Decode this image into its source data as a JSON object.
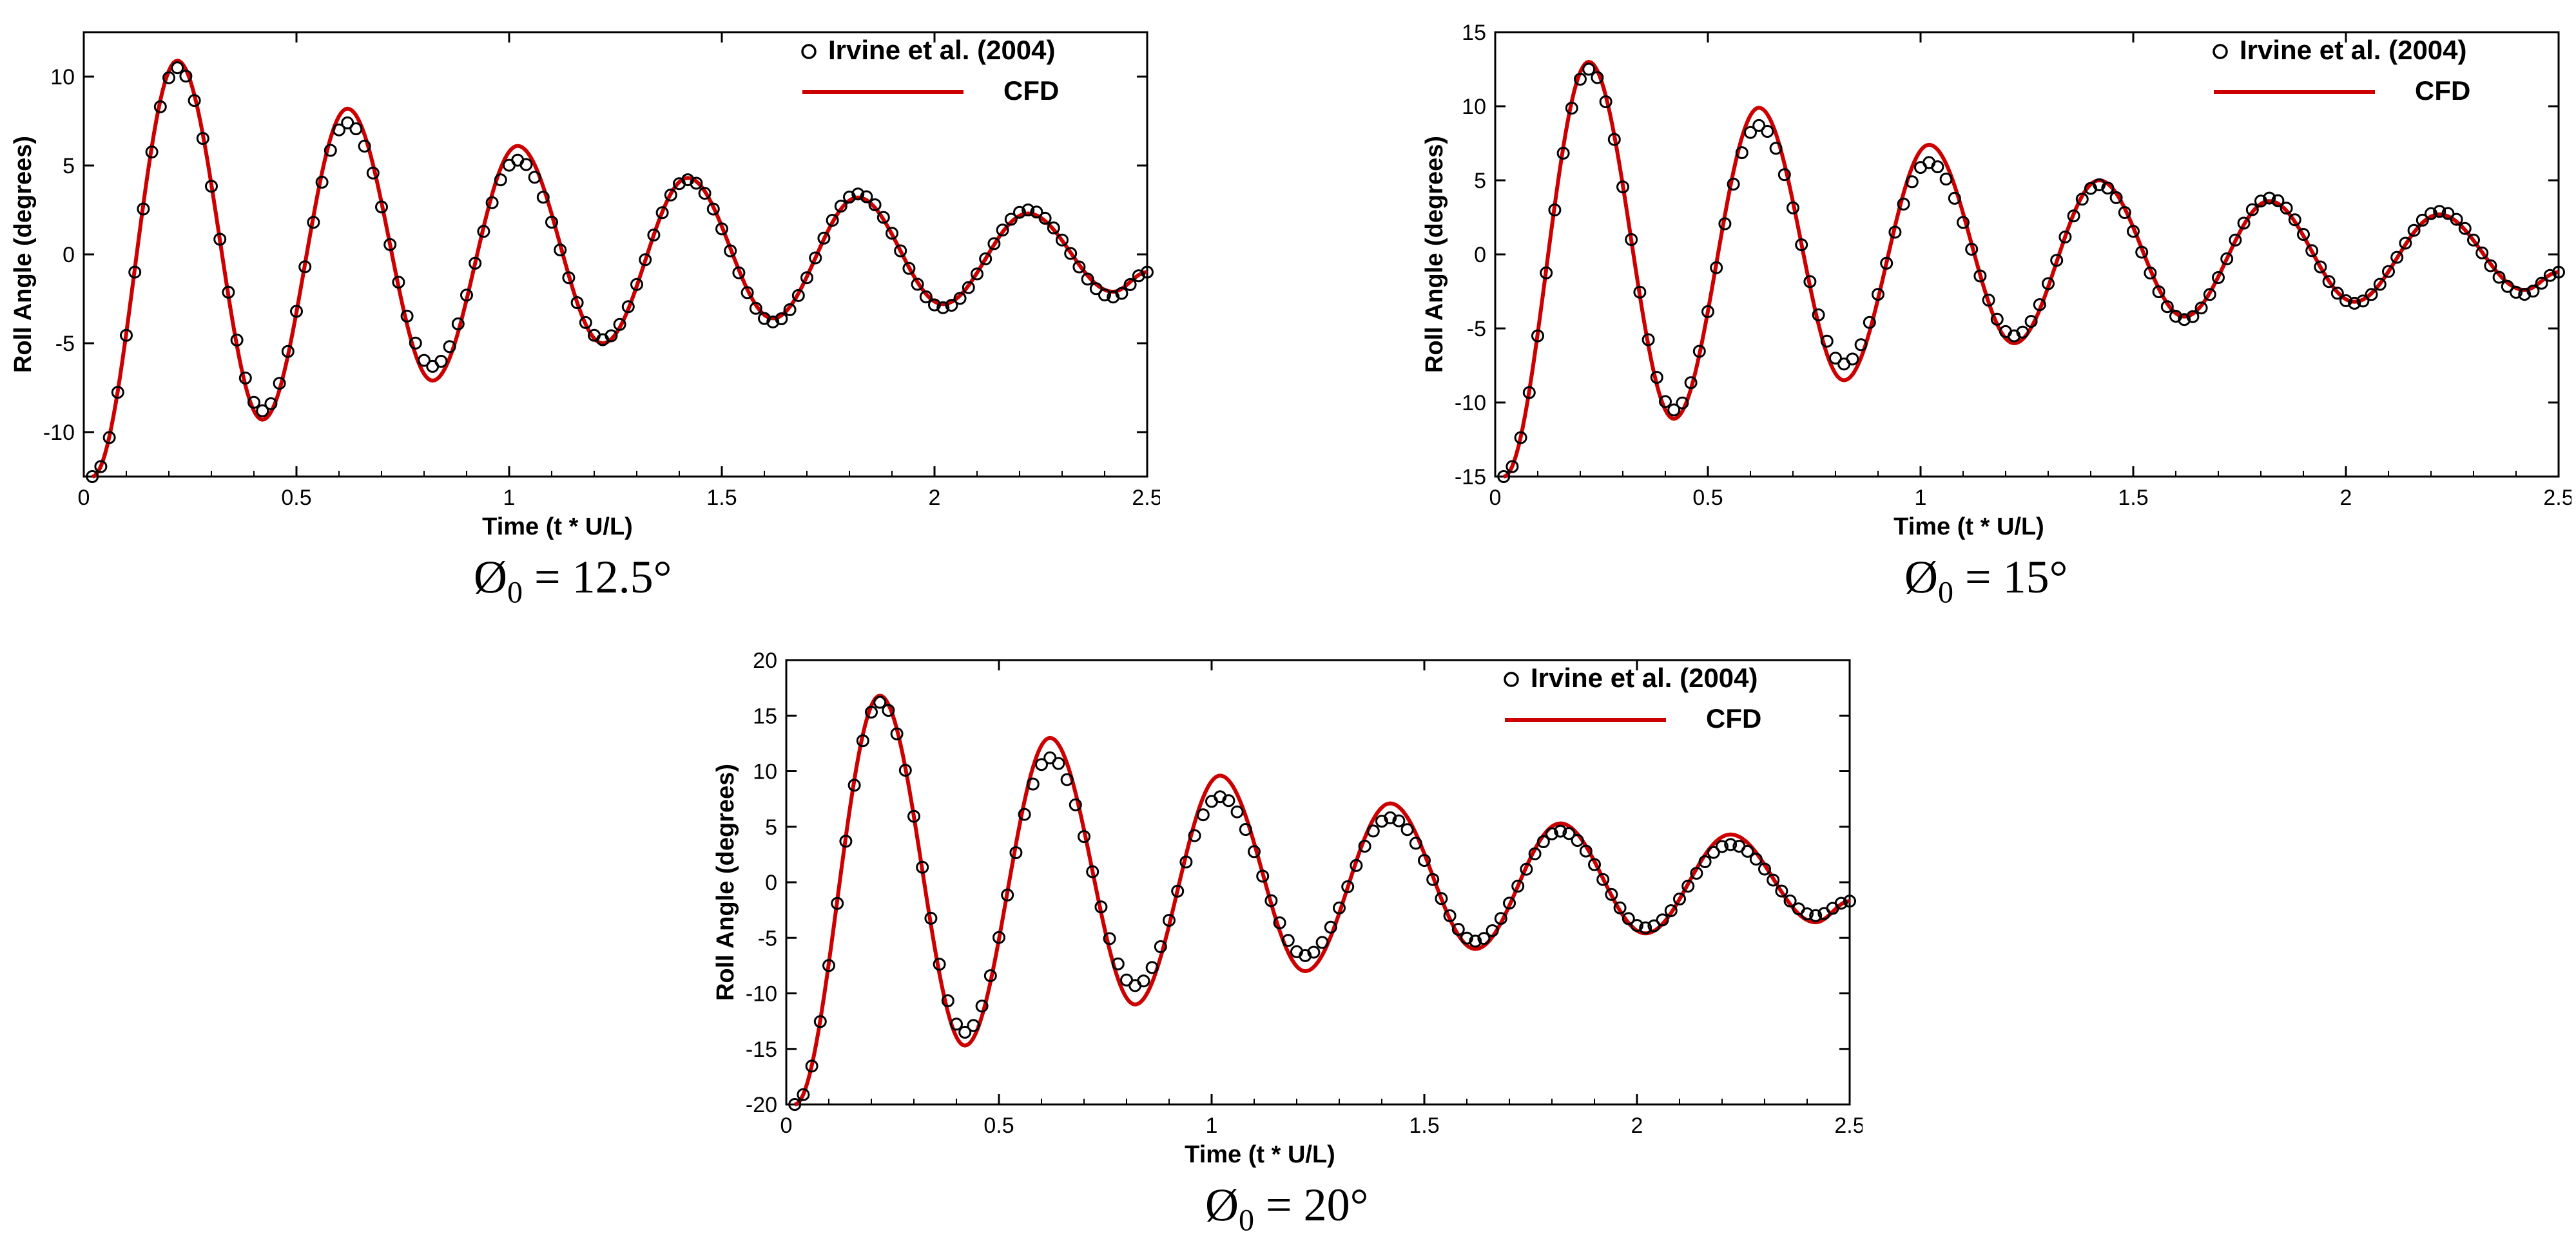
{
  "chart_data": [
    {
      "type": "scatter",
      "title": "",
      "xlabel": "Time (t * U/L)",
      "ylabel": "Roll Angle (degrees)",
      "xlim": [
        0,
        2.5
      ],
      "ylim": [
        -12.5,
        12.5
      ],
      "xticks": [
        0,
        0.5,
        1,
        1.5,
        2,
        2.5
      ],
      "xtick_labels": [
        "0",
        "0.5",
        "1",
        "1.5",
        "2",
        "2.5"
      ],
      "yticks": [
        -10,
        -5,
        0,
        5,
        10
      ],
      "ytick_labels": [
        "-10",
        "-5",
        "0",
        "5",
        "10"
      ],
      "grid": false,
      "legend": "top-right",
      "caption": {
        "symbol": "Ø",
        "sub": "0",
        "value": " = 12.5°"
      },
      "series": [
        {
          "name": "Irvine et al. (2004)",
          "marker": "open-circle",
          "color": "#000000",
          "x0": 0.02,
          "dx": 0.02,
          "period": 0.4,
          "peak_time": 0.22,
          "extrema": [
            -12.5,
            10.5,
            -8.8,
            7.4,
            -6.3,
            5.3,
            -4.8,
            4.2,
            -3.8,
            3.4,
            -3.0,
            2.5,
            -2.4
          ],
          "end_value": -1.0
        },
        {
          "name": "CFD",
          "marker": "line",
          "color": "#cc0000",
          "x0": 0.02,
          "dx": 0.005,
          "period": 0.4,
          "peak_time": 0.22,
          "extrema": [
            -12.5,
            10.9,
            -9.3,
            8.2,
            -7.1,
            6.1,
            -5.0,
            4.3,
            -3.6,
            3.2,
            -2.8,
            2.3,
            -2.1
          ],
          "end_value": -1.0
        }
      ]
    },
    {
      "type": "scatter",
      "title": "",
      "xlabel": "Time (t * U/L)",
      "ylabel": "Roll Angle (degrees)",
      "xlim": [
        0,
        2.5
      ],
      "ylim": [
        -15,
        15
      ],
      "xticks": [
        0,
        0.5,
        1,
        1.5,
        2,
        2.5
      ],
      "xtick_labels": [
        "0",
        "0.5",
        "1",
        "1.5",
        "2",
        "2.5"
      ],
      "yticks": [
        -15,
        -10,
        -5,
        0,
        5,
        10,
        15
      ],
      "ytick_labels": [
        "-15",
        "-10",
        "-5",
        "0",
        "5",
        "10",
        "15"
      ],
      "grid": false,
      "legend": "top-right",
      "caption": {
        "symbol": "Ø",
        "sub": "0",
        "value": " = 15°"
      },
      "series": [
        {
          "name": "Irvine et al. (2004)",
          "marker": "open-circle",
          "color": "#000000",
          "x0": 0.02,
          "dx": 0.02,
          "period": 0.4,
          "peak_time": 0.22,
          "extrema": [
            -15.0,
            12.5,
            -10.5,
            8.7,
            -7.4,
            6.2,
            -5.5,
            4.7,
            -4.4,
            3.8,
            -3.3,
            2.9,
            -2.7
          ],
          "end_value": -1.2
        },
        {
          "name": "CFD",
          "marker": "line",
          "color": "#cc0000",
          "x0": 0.02,
          "dx": 0.005,
          "period": 0.4,
          "peak_time": 0.22,
          "extrema": [
            -15.0,
            13.0,
            -11.1,
            9.9,
            -8.5,
            7.4,
            -6.0,
            5.0,
            -4.2,
            3.6,
            -3.2,
            2.7,
            -2.4
          ],
          "end_value": -1.2
        }
      ]
    },
    {
      "type": "scatter",
      "title": "",
      "xlabel": "Time (t * U/L)",
      "ylabel": "Roll Angle (degrees)",
      "xlim": [
        0,
        2.5
      ],
      "ylim": [
        -20,
        20
      ],
      "xticks": [
        0,
        0.5,
        1,
        1.5,
        2,
        2.5
      ],
      "xtick_labels": [
        "0",
        "0.5",
        "1",
        "1.5",
        "2",
        "2.5"
      ],
      "yticks": [
        -20,
        -15,
        -10,
        -5,
        0,
        5,
        10,
        15,
        20
      ],
      "ytick_labels": [
        "-20",
        "-15",
        "-10",
        "-5",
        "0",
        "5",
        "10",
        "15",
        "20"
      ],
      "grid": false,
      "legend": "top-right",
      "caption": {
        "symbol": "Ø",
        "sub": "0",
        "value": " = 20°"
      },
      "series": [
        {
          "name": "Irvine et al. (2004)",
          "marker": "open-circle",
          "color": "#000000",
          "x0": 0.02,
          "dx": 0.02,
          "period": 0.4,
          "peak_time": 0.22,
          "extrema": [
            -20.0,
            16.2,
            -13.5,
            11.2,
            -9.3,
            7.7,
            -6.6,
            5.8,
            -5.3,
            4.6,
            -4.1,
            3.4,
            -3.0
          ],
          "end_value": -1.7
        },
        {
          "name": "CFD",
          "marker": "line",
          "color": "#cc0000",
          "x0": 0.02,
          "dx": 0.005,
          "period": 0.4,
          "peak_time": 0.22,
          "extrema": [
            -20.0,
            16.8,
            -14.7,
            13.0,
            -11.0,
            9.6,
            -8.0,
            7.1,
            -6.0,
            5.3,
            -4.6,
            4.3,
            -3.6
          ],
          "end_value": -1.7
        }
      ]
    }
  ]
}
